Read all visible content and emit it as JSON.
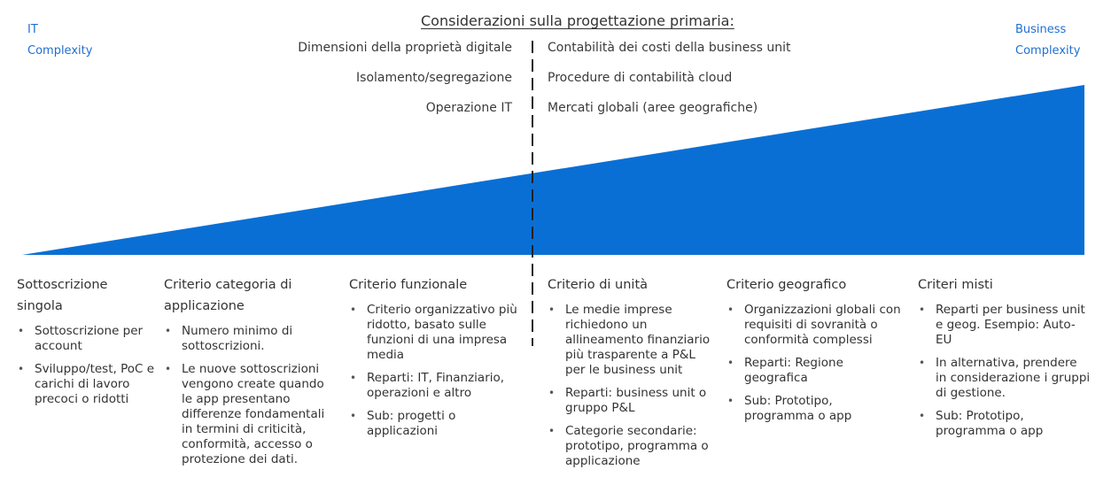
{
  "title": "Considerazioni sulla progettazione primaria:",
  "left_axis_label": [
    "IT",
    "Complexity"
  ],
  "right_axis_label": [
    "Business",
    "Complexity"
  ],
  "considerations_left": [
    "Dimensioni della proprietà digitale",
    "Isolamento/segregazione",
    "Operazione IT"
  ],
  "considerations_right": [
    "Contabilità dei costi della business unit",
    "Procedure di contabilità cloud",
    "Mercati globali (aree geografiche)"
  ],
  "colors": {
    "accent": "#0a6fd4",
    "corner_text": "#1f6fd1"
  },
  "columns": [
    {
      "title": "Sottoscrizione singola",
      "bullets": [
        "Sottoscrizione per account",
        "Sviluppo/test, PoC e carichi di lavoro precoci o ridotti"
      ]
    },
    {
      "title": "Criterio categoria di applicazione",
      "bullets": [
        "Numero minimo di sottoscrizioni.",
        "Le nuove sottoscrizioni vengono create quando le app presentano differenze fondamentali in termini di criticità, conformità, accesso o protezione dei dati."
      ]
    },
    {
      "title": "Criterio funzionale",
      "bullets": [
        "Criterio organizzativo più ridotto, basato sulle funzioni di una impresa media",
        "Reparti: IT, Finanziario, operazioni e altro",
        "Sub: progetti o applicazioni"
      ]
    },
    {
      "title": "Criterio di unità",
      "bullets": [
        "Le medie imprese richiedono un allineamento finanziario più trasparente a P&L per le business unit",
        "Reparti: business unit o gruppo P&L",
        "Categorie secondarie: prototipo, programma o applicazione"
      ]
    },
    {
      "title": "Criterio geografico",
      "bullets": [
        "Organizzazioni globali con requisiti di sovranità o conformità complessi",
        "Reparti: Regione geografica",
        "Sub: Prototipo, programma o app"
      ]
    },
    {
      "title": "Criteri misti",
      "bullets": [
        "Reparti per business unit e geog. Esempio: Auto-EU",
        "In alternativa, prendere in considerazione i gruppi di gestione.",
        "Sub: Prototipo, programma o app"
      ]
    }
  ]
}
